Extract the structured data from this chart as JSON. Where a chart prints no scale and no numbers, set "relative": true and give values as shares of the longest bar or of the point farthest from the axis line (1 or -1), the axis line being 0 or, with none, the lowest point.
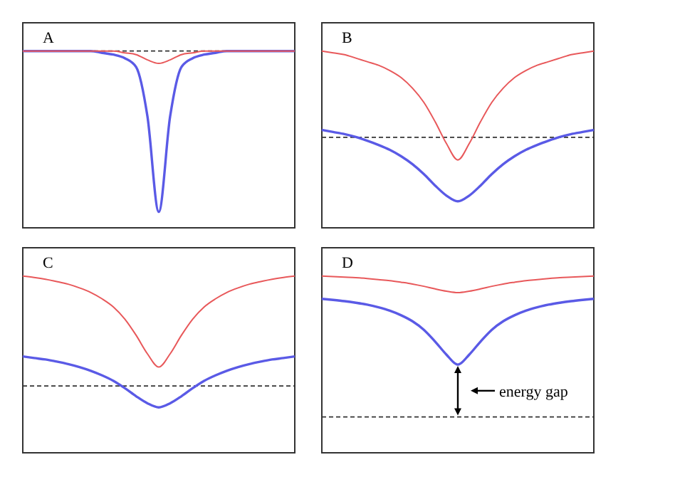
{
  "chart_data": [
    {
      "type": "line",
      "title": "A",
      "relative": true,
      "categories": [
        null,
        null,
        null,
        null,
        null,
        null,
        null,
        null,
        null,
        null,
        null,
        null,
        null,
        null,
        null,
        null,
        null,
        null,
        null,
        null,
        null,
        null,
        null,
        null,
        null
      ],
      "series": [
        {
          "color": "#e8585a",
          "values": [
            1,
            1,
            1,
            1,
            1,
            1,
            1,
            1,
            1,
            0.99,
            0.98,
            0.95,
            0.93,
            0.95,
            0.98,
            0.99,
            1,
            1,
            1,
            1,
            1,
            1,
            1,
            1,
            1
          ]
        },
        {
          "color": "#5a5ae6",
          "values": [
            1,
            1,
            1,
            1,
            1,
            1,
            1,
            0.99,
            0.98,
            0.96,
            0.91,
            0.63,
            0.09,
            0.63,
            0.91,
            0.96,
            0.98,
            0.99,
            1,
            1,
            1,
            1,
            1,
            1,
            1
          ]
        }
      ],
      "ref_lines": [
        {
          "axis": "y",
          "value": 1,
          "color": "#333333",
          "line_style": "dashed"
        }
      ]
    },
    {
      "type": "line",
      "title": "B",
      "relative": true,
      "categories": [
        null,
        null,
        null,
        null,
        null,
        null,
        null,
        null,
        null,
        null,
        null,
        null,
        null,
        null,
        null,
        null,
        null,
        null,
        null,
        null,
        null,
        null,
        null,
        null,
        null
      ],
      "series": [
        {
          "color": "#e8585a",
          "values": [
            1,
            0.99,
            0.98,
            0.96,
            0.94,
            0.92,
            0.89,
            0.85,
            0.79,
            0.71,
            0.6,
            0.476,
            0.384,
            0.476,
            0.6,
            0.71,
            0.79,
            0.85,
            0.89,
            0.92,
            0.94,
            0.96,
            0.98,
            0.99,
            1
          ]
        },
        {
          "color": "#5a5ae6",
          "values": [
            0.554,
            0.542,
            0.53,
            0.514,
            0.493,
            0.469,
            0.441,
            0.405,
            0.36,
            0.304,
            0.239,
            0.182,
            0.15,
            0.182,
            0.239,
            0.304,
            0.36,
            0.405,
            0.441,
            0.469,
            0.493,
            0.514,
            0.53,
            0.542,
            0.554
          ]
        }
      ],
      "ref_lines": [
        {
          "axis": "y",
          "value": 0.512,
          "color": "#333333",
          "line_style": "dashed"
        }
      ]
    },
    {
      "type": "line",
      "title": "C",
      "relative": true,
      "categories": [
        null,
        null,
        null,
        null,
        null,
        null,
        null,
        null,
        null,
        null,
        null,
        null,
        null,
        null,
        null,
        null,
        null,
        null,
        null,
        null,
        null,
        null,
        null,
        null,
        null
      ],
      "series": [
        {
          "color": "#e8585a",
          "values": [
            1,
            0.992,
            0.982,
            0.969,
            0.954,
            0.933,
            0.907,
            0.871,
            0.825,
            0.757,
            0.665,
            0.56,
            0.485,
            0.56,
            0.665,
            0.757,
            0.825,
            0.871,
            0.907,
            0.933,
            0.954,
            0.969,
            0.982,
            0.992,
            1
          ]
        },
        {
          "color": "#5a5ae6",
          "values": [
            0.545,
            0.536,
            0.528,
            0.516,
            0.502,
            0.485,
            0.464,
            0.438,
            0.407,
            0.366,
            0.32,
            0.28,
            0.257,
            0.28,
            0.32,
            0.366,
            0.407,
            0.438,
            0.464,
            0.485,
            0.502,
            0.516,
            0.528,
            0.536,
            0.545
          ]
        }
      ],
      "ref_lines": [
        {
          "axis": "y",
          "value": 0.378,
          "color": "#333333",
          "line_style": "dashed"
        }
      ]
    },
    {
      "type": "line",
      "title": "D",
      "relative": true,
      "categories": [
        null,
        null,
        null,
        null,
        null,
        null,
        null,
        null,
        null,
        null,
        null,
        null,
        null,
        null,
        null,
        null,
        null,
        null,
        null,
        null,
        null,
        null,
        null,
        null,
        null
      ],
      "series": [
        {
          "color": "#e8585a",
          "values": [
            1,
            0.997,
            0.994,
            0.991,
            0.986,
            0.98,
            0.974,
            0.965,
            0.955,
            0.942,
            0.927,
            0.914,
            0.906,
            0.914,
            0.927,
            0.942,
            0.955,
            0.965,
            0.974,
            0.98,
            0.986,
            0.991,
            0.994,
            0.997,
            1
          ]
        },
        {
          "color": "#5a5ae6",
          "values": [
            0.871,
            0.865,
            0.858,
            0.849,
            0.838,
            0.823,
            0.804,
            0.778,
            0.744,
            0.696,
            0.629,
            0.555,
            0.499,
            0.555,
            0.629,
            0.696,
            0.744,
            0.778,
            0.804,
            0.823,
            0.838,
            0.849,
            0.858,
            0.865,
            0.871
          ]
        }
      ],
      "ref_lines": [
        {
          "axis": "y",
          "value": 0.203,
          "color": "#333333",
          "line_style": "dashed"
        }
      ],
      "annotations": [
        "energy gap"
      ]
    }
  ]
}
